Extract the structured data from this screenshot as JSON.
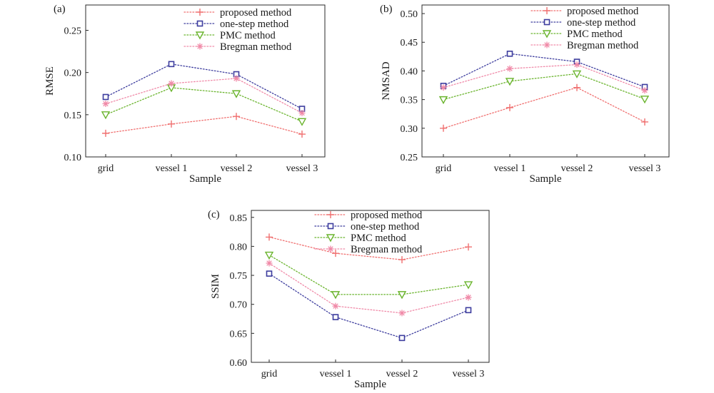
{
  "chart_data": [
    {
      "type": "line",
      "panel_label": "(a)",
      "xlabel": "Sample",
      "ylabel": "RMSE",
      "categories": [
        "grid",
        "vessel 1",
        "vessel 2",
        "vessel 3"
      ],
      "ylim": [
        0.1,
        0.28
      ],
      "yticks": [
        0.1,
        0.15,
        0.2,
        0.25
      ],
      "ytick_labels": [
        "0.10",
        "0.15",
        "0.20",
        "0.25"
      ],
      "series": [
        {
          "name": "proposed method",
          "color": "#f07070",
          "marker": "plus",
          "values": [
            0.128,
            0.139,
            0.148,
            0.127
          ]
        },
        {
          "name": "one-step method",
          "color": "#3d3d9e",
          "marker": "square",
          "values": [
            0.171,
            0.21,
            0.198,
            0.157
          ]
        },
        {
          "name": "PMC method",
          "color": "#6ab42d",
          "marker": "triangle",
          "values": [
            0.15,
            0.182,
            0.175,
            0.142
          ]
        },
        {
          "name": "Bregman method",
          "color": "#f08aa8",
          "marker": "star",
          "values": [
            0.163,
            0.187,
            0.193,
            0.152
          ]
        }
      ]
    },
    {
      "type": "line",
      "panel_label": "(b)",
      "xlabel": "Sample",
      "ylabel": "NMSAD",
      "categories": [
        "grid",
        "vessel 1",
        "vessel 2",
        "vessel 3"
      ],
      "ylim": [
        0.25,
        0.515
      ],
      "yticks": [
        0.25,
        0.3,
        0.35,
        0.4,
        0.45,
        0.5
      ],
      "ytick_labels": [
        "0.25",
        "0.30",
        "0.35",
        "0.40",
        "0.45",
        "0.50"
      ],
      "series": [
        {
          "name": "proposed method",
          "color": "#f07070",
          "marker": "plus",
          "values": [
            0.3,
            0.336,
            0.371,
            0.311
          ]
        },
        {
          "name": "one-step method",
          "color": "#3d3d9e",
          "marker": "square",
          "values": [
            0.374,
            0.43,
            0.416,
            0.372
          ]
        },
        {
          "name": "PMC method",
          "color": "#6ab42d",
          "marker": "triangle",
          "values": [
            0.35,
            0.382,
            0.395,
            0.351
          ]
        },
        {
          "name": "Bregman method",
          "color": "#f08aa8",
          "marker": "star",
          "values": [
            0.371,
            0.404,
            0.411,
            0.366
          ]
        }
      ]
    },
    {
      "type": "line",
      "panel_label": "(c)",
      "xlabel": "Sample",
      "ylabel": "SSIM",
      "categories": [
        "grid",
        "vessel 1",
        "vessel 2",
        "vessel 3"
      ],
      "ylim": [
        0.6,
        0.862
      ],
      "yticks": [
        0.6,
        0.65,
        0.7,
        0.75,
        0.8,
        0.85
      ],
      "ytick_labels": [
        "0.60",
        "0.65",
        "0.70",
        "0.75",
        "0.80",
        "0.85"
      ],
      "series": [
        {
          "name": "proposed method",
          "color": "#f07070",
          "marker": "plus",
          "values": [
            0.816,
            0.788,
            0.777,
            0.799
          ]
        },
        {
          "name": "one-step method",
          "color": "#3d3d9e",
          "marker": "square",
          "values": [
            0.753,
            0.678,
            0.642,
            0.69
          ]
        },
        {
          "name": "PMC method",
          "color": "#6ab42d",
          "marker": "triangle",
          "values": [
            0.785,
            0.717,
            0.717,
            0.734
          ]
        },
        {
          "name": "Bregman method",
          "color": "#f08aa8",
          "marker": "star",
          "values": [
            0.771,
            0.697,
            0.685,
            0.712
          ]
        }
      ]
    }
  ]
}
